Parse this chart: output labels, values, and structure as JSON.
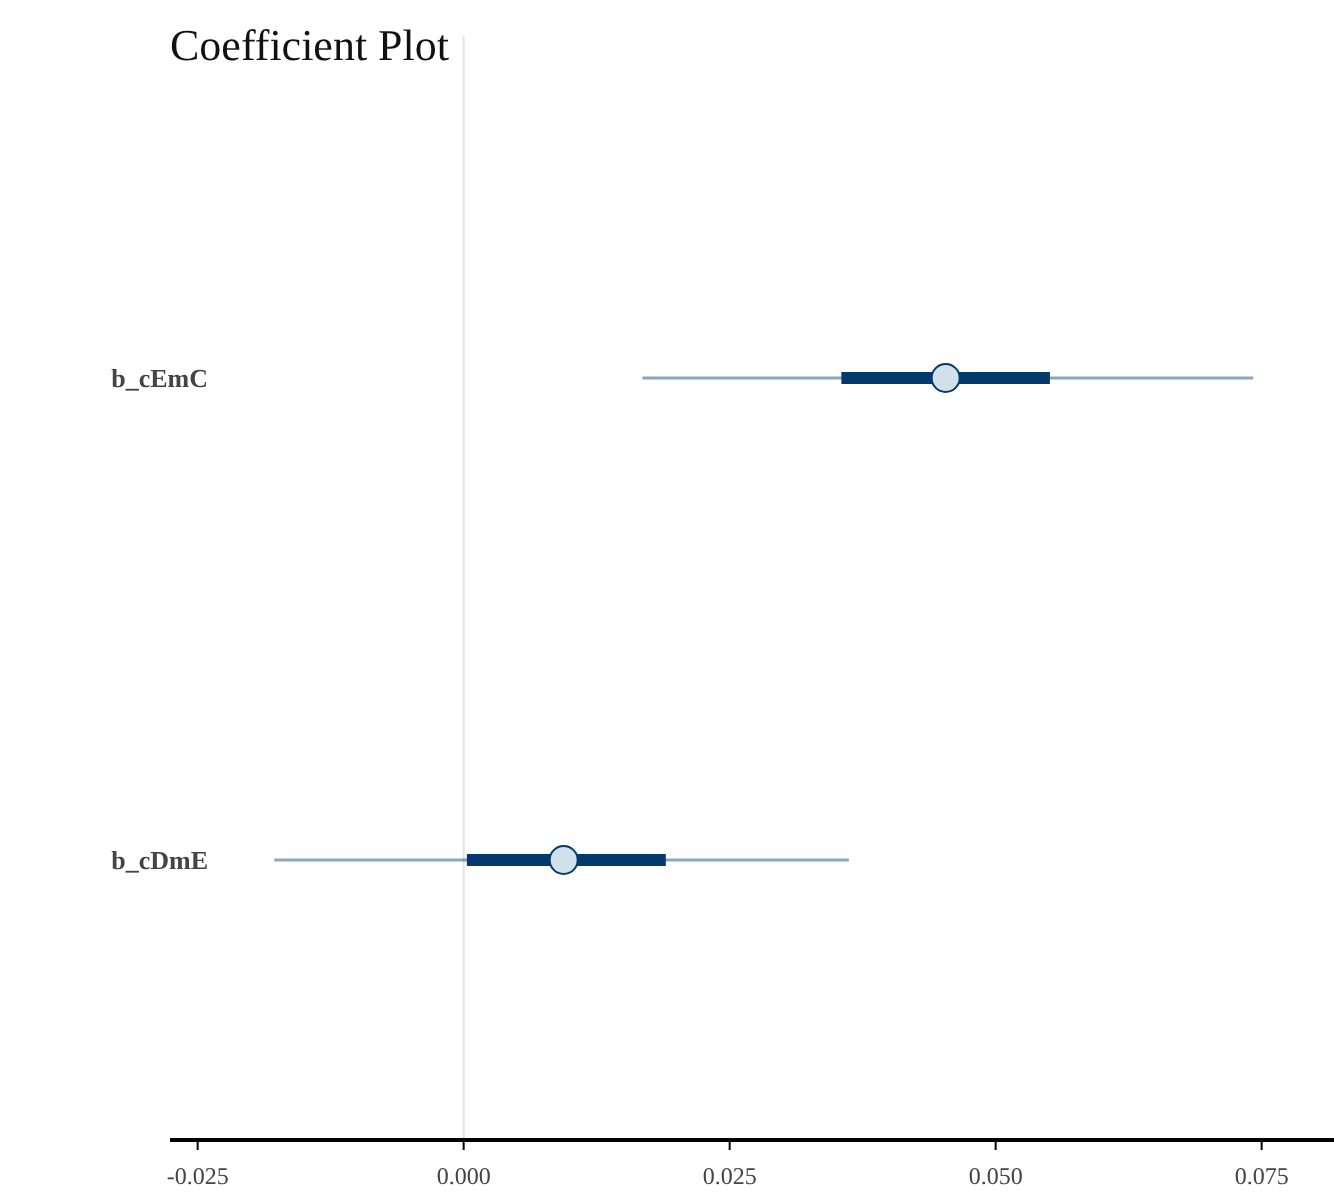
{
  "chart_data": {
    "type": "box",
    "orientation": "horizontal",
    "title": "Coefficient Plot",
    "categories": [
      "b_cEmC",
      "b_cDmE"
    ],
    "series": [
      {
        "color": "#03396c",
        "boxes": [
          {
            "low": 0.0168,
            "q1": 0.0355,
            "median": 0.0453,
            "q3": 0.0551,
            "high": 0.0742
          },
          {
            "low": -0.0178,
            "q1": 0.0003,
            "median": 0.0094,
            "q3": 0.019,
            "high": 0.0362
          }
        ]
      }
    ],
    "xlim": [
      -0.0276,
      0.0818
    ],
    "xticks": [
      -0.025,
      {
        "value": 0,
        "label": "0.000"
      },
      0.025,
      {
        "value": 0.05,
        "label": "0.050"
      },
      0.075
    ],
    "ref_lines": [
      {
        "axis": "x",
        "value": 0,
        "color": "#e2e2e2"
      }
    ],
    "grid": false
  }
}
